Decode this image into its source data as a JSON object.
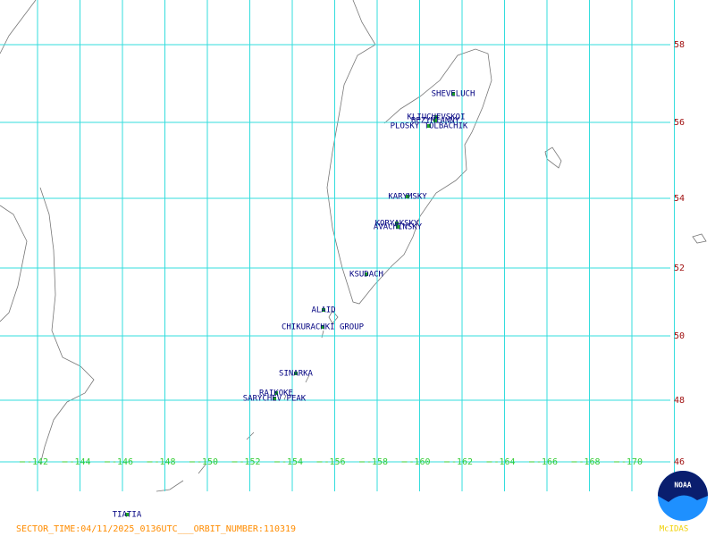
{
  "volcanoes": [
    "SHEVELUCH",
    "KLIUCHEVSKOI",
    "BEZYMIANNY",
    "PLOSKY TOLBACHIK",
    "KARYMSKY",
    "KORYAKSKY",
    "AVACHINSKY",
    "KSUDACH",
    "ALAID",
    "CHIKURACHKI GROUP",
    "SINARKA",
    "RAIKOKE",
    "SARYCHEV PEAK",
    "TIATIA"
  ],
  "latitude_labels": [
    "58",
    "56",
    "54",
    "52",
    "50",
    "48",
    "46"
  ],
  "longitude_labels": [
    "-142",
    "-144",
    "-146",
    "-148",
    "-150",
    "-152",
    "-154",
    "-156",
    "-158",
    "-160",
    "-162",
    "-164",
    "-166",
    "-168",
    "-170"
  ],
  "footer": {
    "sector_info": "SECTOR_TIME:04/11/2025_0136UTC___ORBIT_NUMBER:110319",
    "logo": "NOAA",
    "software": "McIDAS"
  }
}
